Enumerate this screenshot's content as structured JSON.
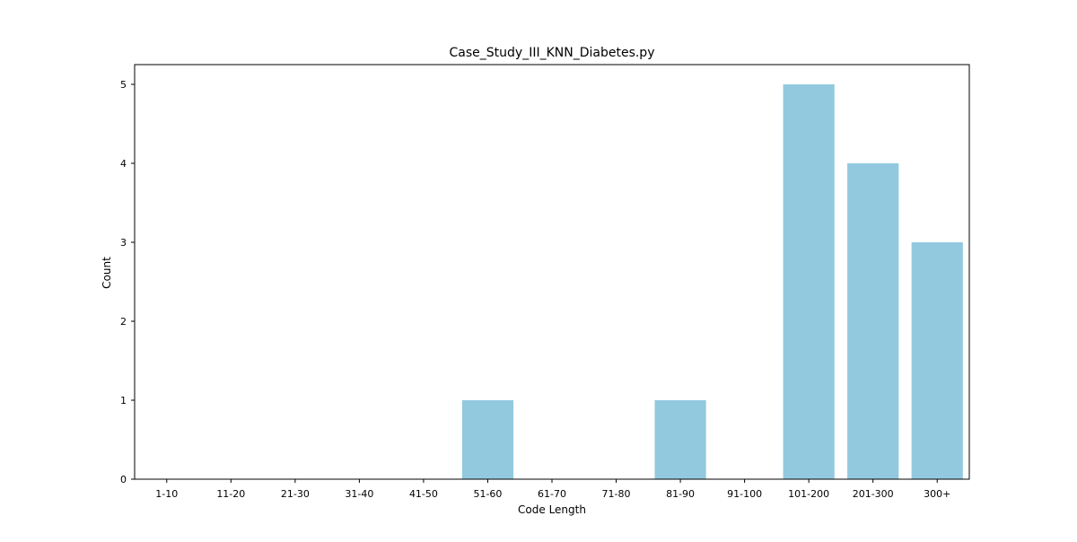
{
  "chart_data": {
    "type": "bar",
    "title": "Case_Study_III_KNN_Diabetes.py",
    "xlabel": "Code Length",
    "ylabel": "Count",
    "categories": [
      "1-10",
      "11-20",
      "21-30",
      "31-40",
      "41-50",
      "51-60",
      "61-70",
      "71-80",
      "81-90",
      "91-100",
      "101-200",
      "201-300",
      "300+"
    ],
    "values": [
      0,
      0,
      0,
      0,
      0,
      1,
      0,
      0,
      1,
      0,
      5,
      4,
      3
    ],
    "ylim": [
      0,
      5.25
    ],
    "yticks": [
      0,
      1,
      2,
      3,
      4,
      5
    ],
    "grid": false,
    "bar_color": "#92c9df"
  }
}
